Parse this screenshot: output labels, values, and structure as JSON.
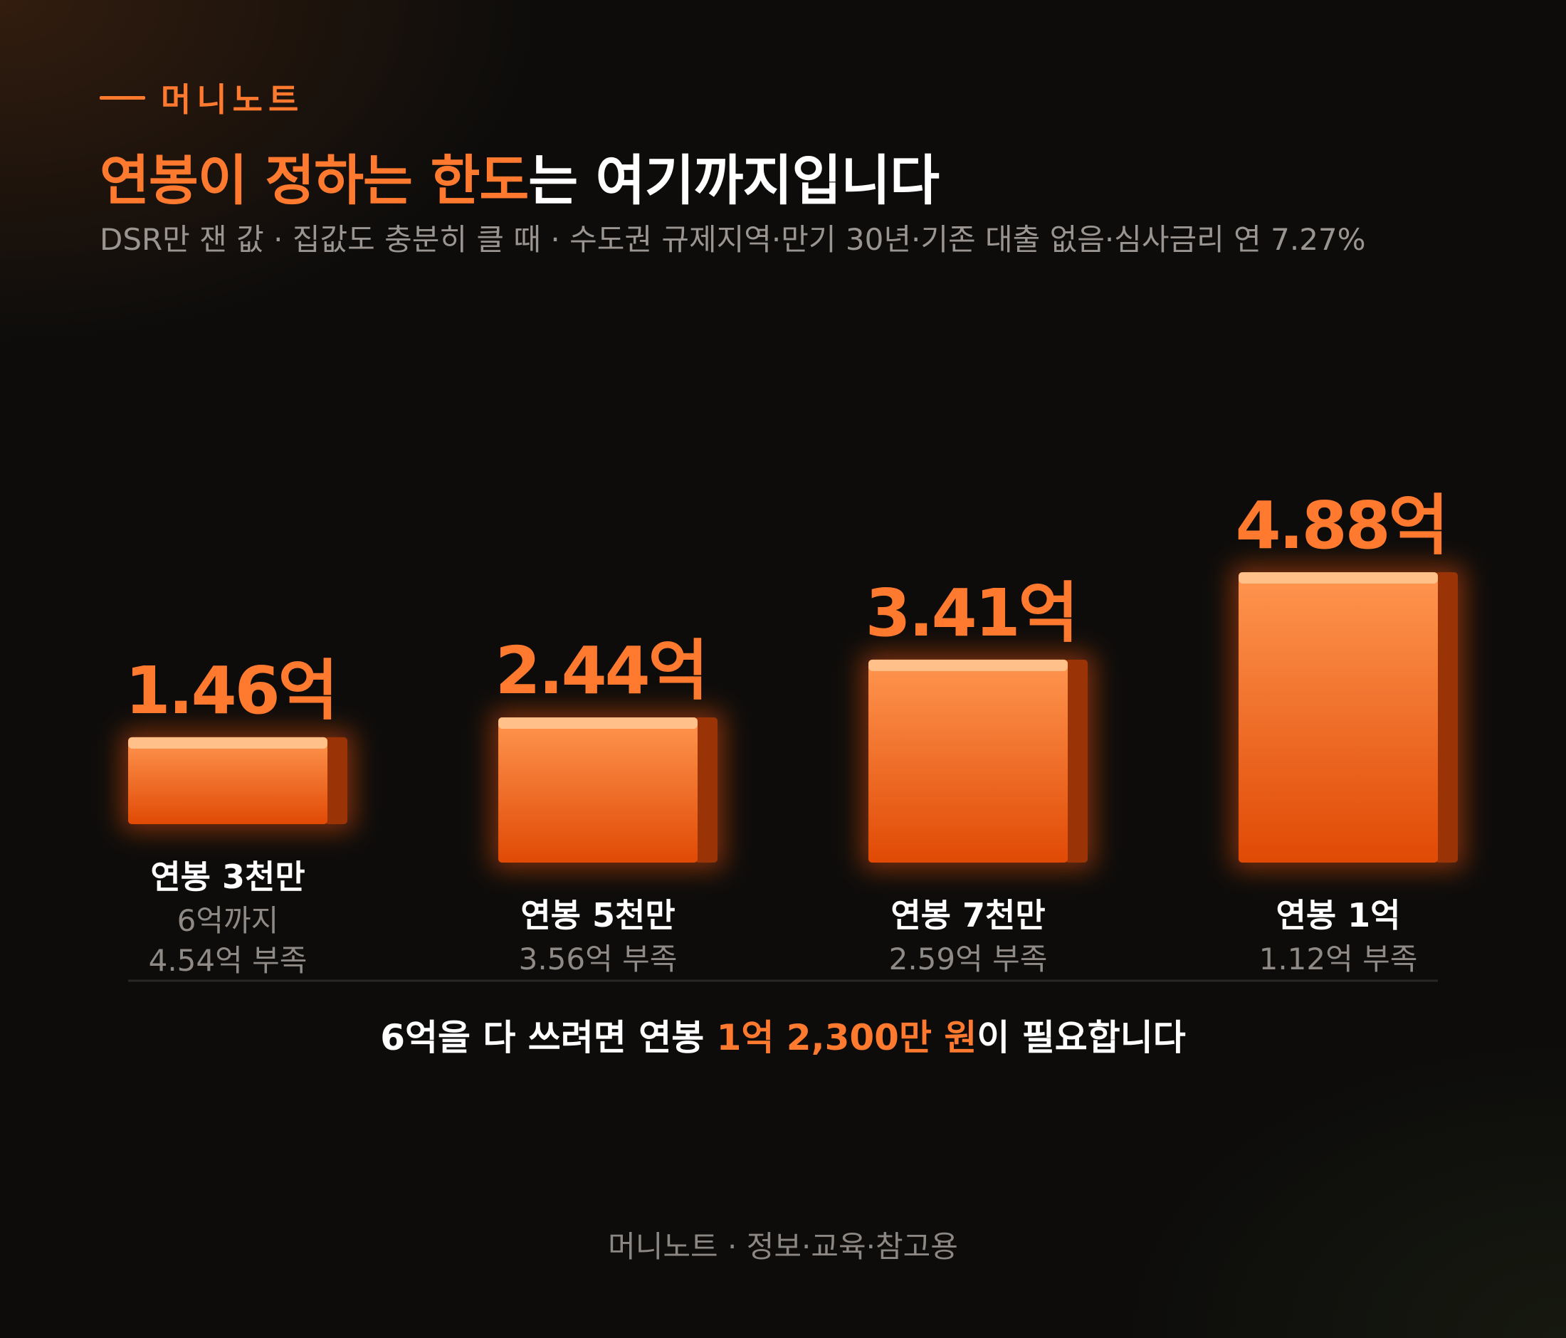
{
  "brand": {
    "name": "머니노트"
  },
  "header": {
    "title_highlight": "연봉이 정하는 한도",
    "title_rest": "는 여기까지입니다",
    "subtitle": "DSR만 잰 값 · 집값도 충분히 클 때 · 수도권 규제지역·만기 30년·기존 대출 없음·심사금리 연 7.27%"
  },
  "chart_data": {
    "type": "bar",
    "unit": "억",
    "categories": [
      "연봉 3천만",
      "연봉 5천만",
      "연봉 7천만",
      "연봉 1억"
    ],
    "values": [
      1.46,
      2.44,
      3.41,
      4.88
    ],
    "value_labels": [
      "1.46억",
      "2.44억",
      "3.41억",
      "4.88억"
    ],
    "notes": [
      [
        "6억까지",
        "4.54억 부족"
      ],
      [
        "3.56억 부족"
      ],
      [
        "2.59억 부족"
      ],
      [
        "1.12억 부족"
      ]
    ],
    "colors": {
      "bar_top": "#ff9650",
      "bar_bottom": "#e04a05",
      "bar_side": "#9a3406",
      "bar_cap": "#ffc08a",
      "value_label": "#ff7a2f",
      "category_label": "#ffffff",
      "note": "#8f8a85"
    }
  },
  "conclusion": {
    "before": "6억을 다 쓰려면 연봉 ",
    "highlight": "1억 2,300만 원",
    "after": "이 필요합니다"
  },
  "footer": {
    "credit": "머니노트 · 정보·교육·참고용"
  }
}
